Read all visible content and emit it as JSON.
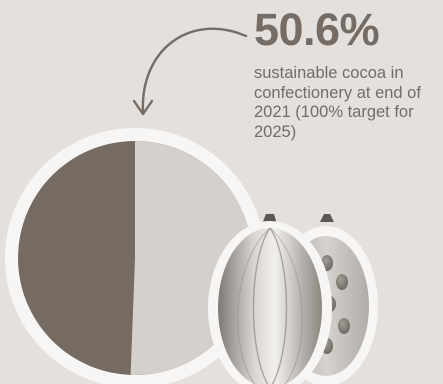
{
  "stat": {
    "value": "50.6%",
    "description": "sustainable cocoa in confectionery at end of 2021 (100% target for 2025)"
  },
  "pie": {
    "sustainable_percent": 50.6,
    "sustainable_color": "#d4d0cc",
    "other_color": "#766b63",
    "ring_color": "#f8f6f4"
  },
  "colors": {
    "background": "#e4e0dd",
    "text": "#756c66",
    "arrow": "#756c66"
  },
  "icons": {
    "arrow": "curved-arrow-icon",
    "pod": "cocoa-pod-icon",
    "pod_half": "cocoa-pod-half-icon"
  }
}
